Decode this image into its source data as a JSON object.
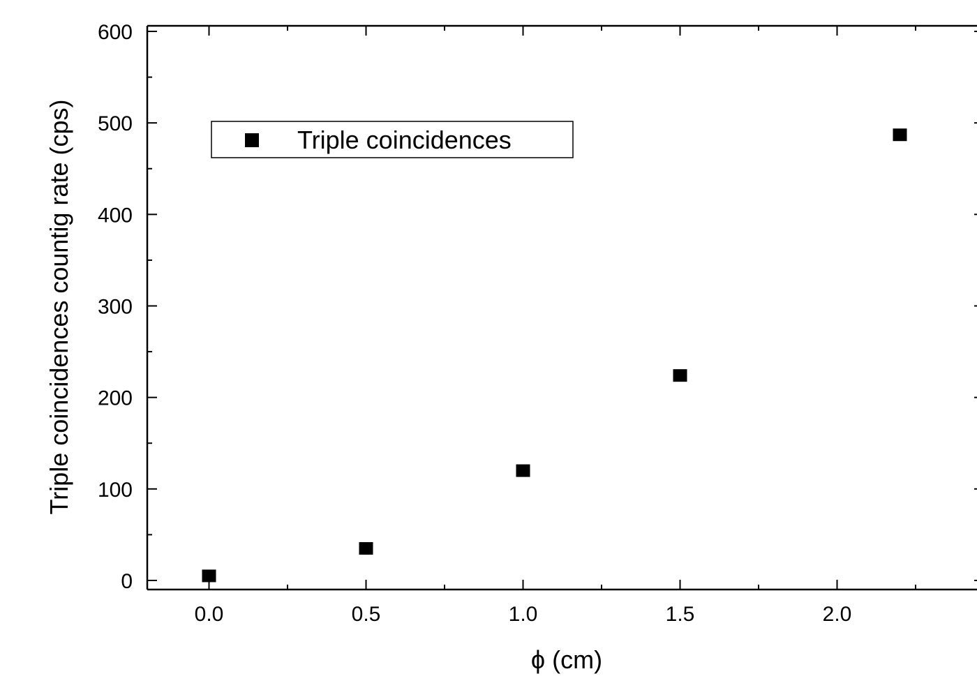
{
  "chart_data": {
    "type": "scatter",
    "xlabel": "ϕ (cm)",
    "ylabel": "Triple coincidences countig rate (cps)",
    "xlim": [
      -0.2,
      2.45
    ],
    "ylim": [
      -10,
      605
    ],
    "x_ticks": [
      0.0,
      0.5,
      1.0,
      1.5,
      2.0
    ],
    "x_tick_labels": [
      "0.0",
      "0.5",
      "1.0",
      "1.5",
      "2.0"
    ],
    "y_ticks": [
      0,
      100,
      200,
      300,
      400,
      500,
      600
    ],
    "y_tick_labels": [
      "0",
      "100",
      "200",
      "300",
      "400",
      "500",
      "600"
    ],
    "grid": false,
    "legend_position": "top-left",
    "series": [
      {
        "name": "Triple coincidences",
        "marker": "square",
        "color": "#000000",
        "x": [
          0.0,
          0.5,
          1.0,
          1.5,
          2.2
        ],
        "y": [
          5,
          35,
          120,
          224,
          487
        ]
      }
    ]
  }
}
